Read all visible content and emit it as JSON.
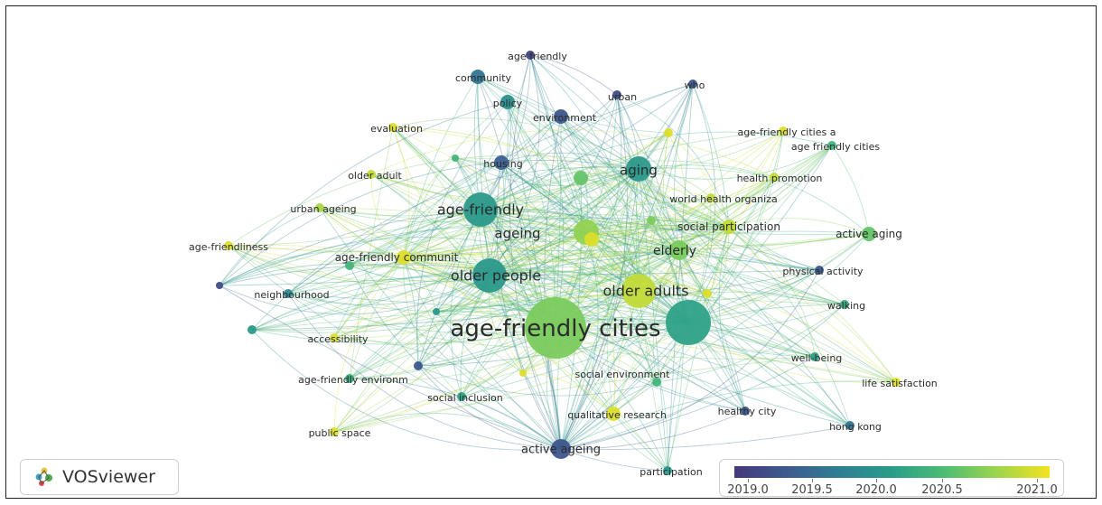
{
  "app": {
    "name": "VOSviewer"
  },
  "icons": {
    "logo": "vosviewer-logo-icon"
  },
  "colorbar": {
    "ticks": [
      "2019.0",
      "2019.5",
      "2020.0",
      "2020.5",
      "2021.0"
    ],
    "min": 2019.0,
    "max": 2021.1,
    "gradient": [
      "#46387c",
      "#3d5b8f",
      "#2f7f93",
      "#2a9d8a",
      "#4dbd73",
      "#9cd54c",
      "#f5e21e"
    ]
  },
  "network": {
    "nodes": [
      {
        "id": "afc",
        "label": "age-friendly cities",
        "year": 2020.6,
        "weight": 10
      },
      {
        "id": "af",
        "label": "age-friendly",
        "year": 2020.0,
        "weight": 6
      },
      {
        "id": "op",
        "label": "older people",
        "year": 2020.0,
        "weight": 6
      },
      {
        "id": "oa",
        "label": "older adults",
        "year": 2020.9,
        "weight": 6
      },
      {
        "id": "aging",
        "label": "aging",
        "year": 2020.0,
        "weight": 5
      },
      {
        "id": "ageing",
        "label": "ageing",
        "year": 2020.7,
        "weight": 5
      },
      {
        "id": "elderly",
        "label": "elderly",
        "year": 2020.6,
        "weight": 4
      },
      {
        "id": "hub",
        "label": "",
        "year": 2020.1,
        "weight": 7
      },
      {
        "id": "aa",
        "label": "active ageing",
        "year": 2019.3,
        "weight": 4
      },
      {
        "id": "afcomm",
        "label": "age-friendly communit",
        "year": 2021.0,
        "weight": 3
      },
      {
        "id": "sp",
        "label": "social participation",
        "year": 2020.9,
        "weight": 3
      },
      {
        "id": "actaging",
        "label": "active aging",
        "year": 2020.5,
        "weight": 3
      },
      {
        "id": "housing",
        "label": "housing",
        "year": 2019.4,
        "weight": 3
      },
      {
        "id": "community",
        "label": "community",
        "year": 2019.6,
        "weight": 3
      },
      {
        "id": "policy",
        "label": "policy",
        "year": 2019.9,
        "weight": 3
      },
      {
        "id": "env",
        "label": "environment",
        "year": 2019.3,
        "weight": 3
      },
      {
        "id": "afdly",
        "label": "age friendly",
        "year": 2019.1,
        "weight": 2
      },
      {
        "id": "urban",
        "label": "urban",
        "year": 2019.2,
        "weight": 2
      },
      {
        "id": "who",
        "label": "who",
        "year": 2019.3,
        "weight": 2
      },
      {
        "id": "eval",
        "label": "evaluation",
        "year": 2021.0,
        "weight": 2
      },
      {
        "id": "olderadult",
        "label": "older adult",
        "year": 2020.9,
        "weight": 2
      },
      {
        "id": "urbanageing",
        "label": "urban ageing",
        "year": 2020.8,
        "weight": 2
      },
      {
        "id": "afness",
        "label": "age-friendliness",
        "year": 2021.0,
        "weight": 2
      },
      {
        "id": "neigh",
        "label": "neighbourhood",
        "year": 2019.8,
        "weight": 2
      },
      {
        "id": "access",
        "label": "accessibility",
        "year": 2021.0,
        "weight": 2
      },
      {
        "id": "afenv",
        "label": "age-friendly environm",
        "year": 2020.2,
        "weight": 2
      },
      {
        "id": "si",
        "label": "social inclusion",
        "year": 2020.1,
        "weight": 2
      },
      {
        "id": "pubspace",
        "label": "public space",
        "year": 2021.0,
        "weight": 2
      },
      {
        "id": "qr",
        "label": "qualitative research",
        "year": 2021.0,
        "weight": 3
      },
      {
        "id": "senv",
        "label": "social environment",
        "year": 2020.3,
        "weight": 2
      },
      {
        "id": "hcity",
        "label": "healthy city",
        "year": 2019.3,
        "weight": 2
      },
      {
        "id": "hk",
        "label": "hong kong",
        "year": 2019.6,
        "weight": 2
      },
      {
        "id": "ls",
        "label": "life satisfaction",
        "year": 2021.0,
        "weight": 2
      },
      {
        "id": "wb",
        "label": "well-being",
        "year": 2020.1,
        "weight": 2
      },
      {
        "id": "walk",
        "label": "walking",
        "year": 2020.2,
        "weight": 2
      },
      {
        "id": "pa",
        "label": "physical activity",
        "year": 2019.3,
        "weight": 2
      },
      {
        "id": "whoorg",
        "label": "world health organiza",
        "year": 2020.9,
        "weight": 2
      },
      {
        "id": "hp",
        "label": "health promotion",
        "year": 2020.9,
        "weight": 2
      },
      {
        "id": "afca",
        "label": "age-friendly cities a",
        "year": 2021.0,
        "weight": 2
      },
      {
        "id": "afcs",
        "label": "age friendly cities",
        "year": 2020.3,
        "weight": 2
      },
      {
        "id": "part",
        "label": "participation",
        "year": 2020.0,
        "weight": 2
      },
      {
        "id": "u1",
        "label": "",
        "year": 2021.0,
        "weight": 2
      },
      {
        "id": "u2",
        "label": "",
        "year": 2020.5,
        "weight": 3
      },
      {
        "id": "u3",
        "label": "",
        "year": 2021.0,
        "weight": 3
      },
      {
        "id": "u4",
        "label": "",
        "year": 2021.0,
        "weight": 2
      },
      {
        "id": "u5",
        "label": "",
        "year": 2020.6,
        "weight": 2
      },
      {
        "id": "u6",
        "label": "",
        "year": 2020.3,
        "weight": 1
      },
      {
        "id": "u7",
        "label": "",
        "year": 2019.3,
        "weight": 2
      },
      {
        "id": "u8",
        "label": "",
        "year": 2019.2,
        "weight": 1
      },
      {
        "id": "u9",
        "label": "",
        "year": 2021.0,
        "weight": 1
      },
      {
        "id": "u10",
        "label": "",
        "year": 2020.0,
        "weight": 2
      },
      {
        "id": "u11",
        "label": "",
        "year": 2020.3,
        "weight": 2
      },
      {
        "id": "u12",
        "label": "",
        "year": 2020.0,
        "weight": 1
      }
    ]
  }
}
